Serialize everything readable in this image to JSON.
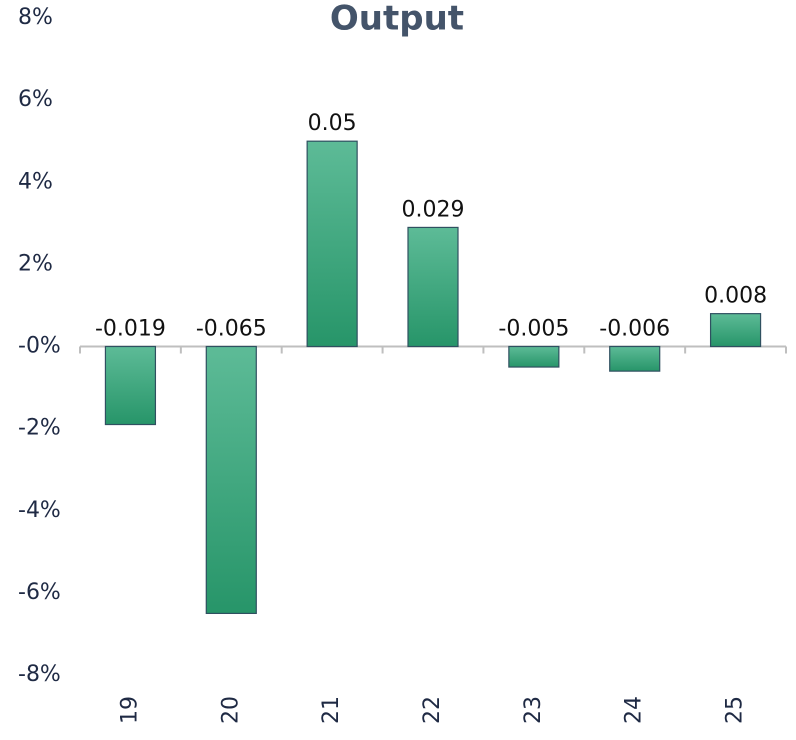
{
  "chart_data": {
    "type": "bar",
    "title": "Output",
    "categories": [
      "19",
      "20",
      "21",
      "22",
      "23",
      "24",
      "25"
    ],
    "values": [
      -0.019,
      -0.065,
      0.05,
      0.029,
      -0.005,
      -0.006,
      0.008
    ],
    "color": "#2e9e74",
    "ylim": [
      -0.08,
      0.08
    ],
    "yticks": [
      {
        "value": -0.08,
        "label": "-8%"
      },
      {
        "value": -0.06,
        "label": "-6%"
      },
      {
        "value": -0.04,
        "label": "-4%"
      },
      {
        "value": -0.02,
        "label": "-2%"
      },
      {
        "value": 0,
        "label": "-0%"
      },
      {
        "value": 0.02,
        "label": "2%"
      },
      {
        "value": 0.04,
        "label": "4%"
      },
      {
        "value": 0.06,
        "label": "6%"
      },
      {
        "value": 0.08,
        "label": "8%"
      }
    ],
    "grid": false
  }
}
